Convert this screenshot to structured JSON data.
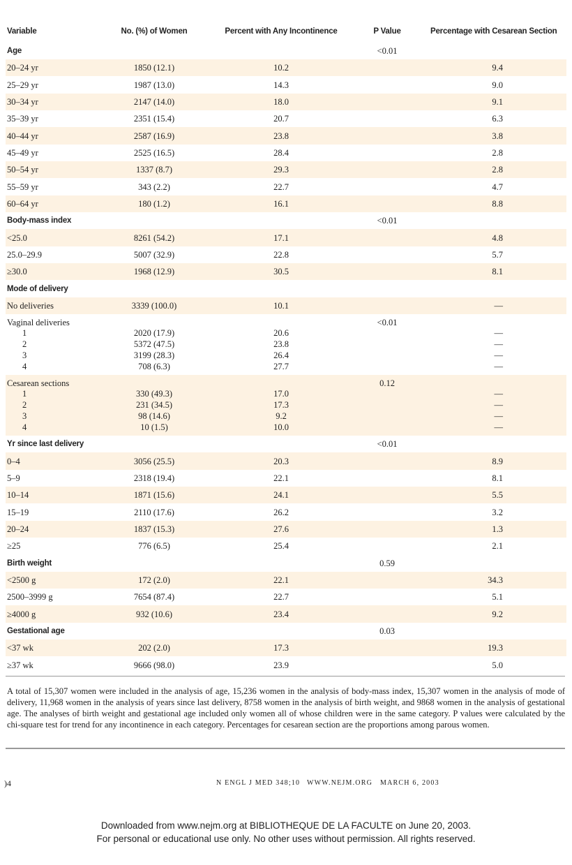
{
  "header": {
    "columns": [
      "Variable",
      "No. (%) of Women",
      "Percent with Any Incontinence",
      "P Value",
      "Percentage with Cesarean Section"
    ]
  },
  "table": {
    "sections": [
      {
        "label": "Age",
        "p_value": "<0.01",
        "rows": [
          {
            "variable": "20–24 yr",
            "women": "1850 (12.1)",
            "incontinence": "10.2",
            "cesarean": "9.4"
          },
          {
            "variable": "25–29 yr",
            "women": "1987 (13.0)",
            "incontinence": "14.3",
            "cesarean": "9.0"
          },
          {
            "variable": "30–34 yr",
            "women": "2147 (14.0)",
            "incontinence": "18.0",
            "cesarean": "9.1"
          },
          {
            "variable": "35–39 yr",
            "women": "2351 (15.4)",
            "incontinence": "20.7",
            "cesarean": "6.3"
          },
          {
            "variable": "40–44 yr",
            "women": "2587 (16.9)",
            "incontinence": "23.8",
            "cesarean": "3.8"
          },
          {
            "variable": "45–49 yr",
            "women": "2525 (16.5)",
            "incontinence": "28.4",
            "cesarean": "2.8"
          },
          {
            "variable": "50–54 yr",
            "women": "1337 (8.7)",
            "incontinence": "29.3",
            "cesarean": "2.8"
          },
          {
            "variable": "55–59 yr",
            "women": "343 (2.2)",
            "incontinence": "22.7",
            "cesarean": "4.7"
          },
          {
            "variable": "60–64 yr",
            "women": "180 (1.2)",
            "incontinence": "16.1",
            "cesarean": "8.8"
          }
        ]
      },
      {
        "label": "Body-mass index",
        "p_value": "<0.01",
        "rows": [
          {
            "variable": "<25.0",
            "women": "8261 (54.2)",
            "incontinence": "17.1",
            "cesarean": "4.8"
          },
          {
            "variable": "25.0–29.9",
            "women": "5007 (32.9)",
            "incontinence": "22.8",
            "cesarean": "5.7"
          },
          {
            "variable": "≥30.0",
            "women": "1968 (12.9)",
            "incontinence": "30.5",
            "cesarean": "8.1"
          }
        ]
      },
      {
        "label": "Mode of delivery",
        "rows": [
          {
            "variable": "No deliveries",
            "women": "3339 (100.0)",
            "incontinence": "10.1",
            "cesarean": "—"
          },
          {
            "variable": "Vaginal deliveries",
            "p_value": "<0.01",
            "sub": [
              {
                "variable": "1",
                "women": "2020 (17.9)",
                "incontinence": "20.6",
                "cesarean": "—"
              },
              {
                "variable": "2",
                "women": "5372 (47.5)",
                "incontinence": "23.8",
                "cesarean": "—"
              },
              {
                "variable": "3",
                "women": "3199 (28.3)",
                "incontinence": "26.4",
                "cesarean": "—"
              },
              {
                "variable": "4",
                "women": "708 (6.3)",
                "incontinence": "27.7",
                "cesarean": "—"
              }
            ]
          },
          {
            "variable": "Cesarean sections",
            "p_value": "0.12",
            "sub": [
              {
                "variable": "1",
                "women": "330 (49.3)",
                "incontinence": "17.0",
                "cesarean": "—"
              },
              {
                "variable": "2",
                "women": "231 (34.5)",
                "incontinence": "17.3",
                "cesarean": "—"
              },
              {
                "variable": "3",
                "women": "98 (14.6)",
                "incontinence": "9.2",
                "cesarean": "—"
              },
              {
                "variable": "4",
                "women": "10 (1.5)",
                "incontinence": "10.0",
                "cesarean": "—"
              }
            ]
          }
        ]
      },
      {
        "label": "Yr since last delivery",
        "p_value": "<0.01",
        "rows": [
          {
            "variable": "0–4",
            "women": "3056 (25.5)",
            "incontinence": "20.3",
            "cesarean": "8.9"
          },
          {
            "variable": "5–9",
            "women": "2318 (19.4)",
            "incontinence": "22.1",
            "cesarean": "8.1"
          },
          {
            "variable": "10–14",
            "women": "1871 (15.6)",
            "incontinence": "24.1",
            "cesarean": "5.5"
          },
          {
            "variable": "15–19",
            "women": "2110 (17.6)",
            "incontinence": "26.2",
            "cesarean": "3.2"
          },
          {
            "variable": "20–24",
            "women": "1837 (15.3)",
            "incontinence": "27.6",
            "cesarean": "1.3"
          },
          {
            "variable": "≥25",
            "women": "776 (6.5)",
            "incontinence": "25.4",
            "cesarean": "2.1"
          }
        ]
      },
      {
        "label": "Birth weight",
        "p_value": "0.59",
        "rows": [
          {
            "variable": "<2500 g",
            "women": "172 (2.0)",
            "incontinence": "22.1",
            "cesarean": "34.3"
          },
          {
            "variable": "2500–3999 g",
            "women": "7654 (87.4)",
            "incontinence": "22.7",
            "cesarean": "5.1"
          },
          {
            "variable": "≥4000 g",
            "women": "932 (10.6)",
            "incontinence": "23.4",
            "cesarean": "9.2"
          }
        ]
      },
      {
        "label": "Gestational age",
        "p_value": "0.03",
        "rows": [
          {
            "variable": "<37 wk",
            "women": "202 (2.0)",
            "incontinence": "17.3",
            "cesarean": "19.3"
          },
          {
            "variable": "≥37 wk",
            "women": "9666 (98.0)",
            "incontinence": "23.9",
            "cesarean": "5.0"
          }
        ]
      }
    ]
  },
  "footnote": "A total of 15,307 women were included in the analysis of age, 15,236 women in the analysis of body-mass index, 15,307 women in the analysis of mode of delivery, 11,968 women in the analysis of years since last delivery, 8758 women in the analysis of birth weight, and 9868 women in the analysis of gestational age. The analyses of birth weight and gestational age included only women all of whose children were in the same category. P values were calculated by the chi-square test for trend for any incontinence in each category. Percentages for cesarean section are the proportions among parous women.",
  "footer": {
    "page": ")4",
    "journal": "n engl j med 348;10",
    "website": "www.nejm.org",
    "date": "march 6, 2003"
  },
  "download_notice": [
    "Downloaded from www.nejm.org at BIBLIOTHEQUE DE LA FACULTE on June 20, 2003.",
    "For personal or educational use only. No other uses without permission. All rights reserved."
  ]
}
